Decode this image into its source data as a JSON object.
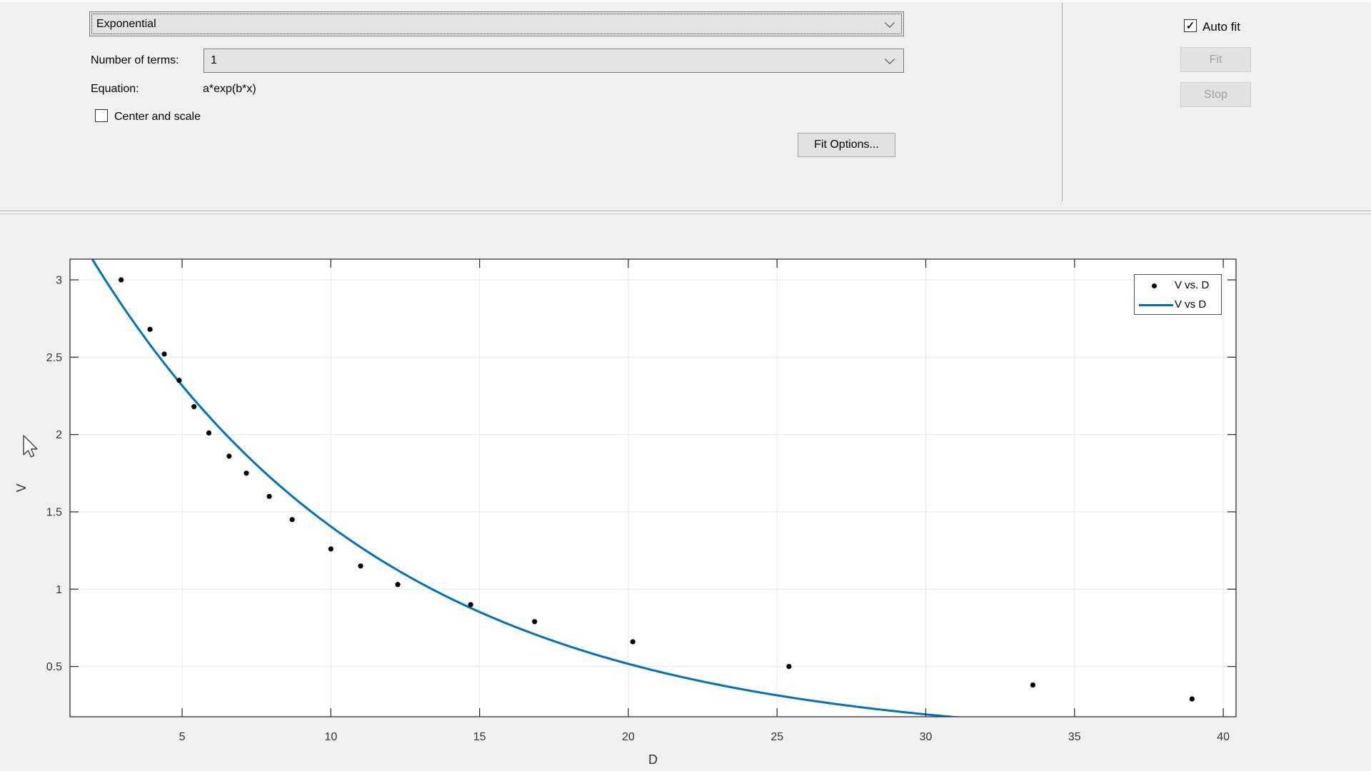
{
  "ui": {
    "fit_type": {
      "value": "Exponential"
    },
    "number_of_terms": {
      "label": "Number of terms:",
      "value": "1"
    },
    "equation": {
      "label": "Equation:",
      "value": "a*exp(b*x)"
    },
    "center_and_scale": {
      "label": "Center and scale",
      "checked": false
    },
    "fit_options_button": {
      "label": "Fit Options..."
    },
    "auto_fit": {
      "label": "Auto fit",
      "checked": true
    },
    "fit_button": {
      "label": "Fit",
      "enabled": false
    },
    "stop_button": {
      "label": "Stop",
      "enabled": false
    }
  },
  "chart_data": {
    "type": "scatter",
    "title": "",
    "xlabel": "D",
    "ylabel": "V",
    "xlim": [
      1.23,
      40.43
    ],
    "ylim": [
      0.175,
      3.134
    ],
    "xticks": [
      5,
      10,
      15,
      20,
      25,
      30,
      35,
      40
    ],
    "yticks": [
      0.5,
      1,
      1.5,
      2,
      2.5,
      3
    ],
    "grid": true,
    "legend_position": "northeast",
    "series": [
      {
        "name": "V vs. D",
        "type": "scatter",
        "marker": "point",
        "color": "#000000",
        "points": [
          [
            2.95,
            3.0
          ],
          [
            3.92,
            2.68
          ],
          [
            4.4,
            2.52
          ],
          [
            4.9,
            2.35
          ],
          [
            5.4,
            2.18
          ],
          [
            5.9,
            2.01
          ],
          [
            6.58,
            1.86
          ],
          [
            7.16,
            1.75
          ],
          [
            7.93,
            1.6
          ],
          [
            8.7,
            1.45
          ],
          [
            10.0,
            1.26
          ],
          [
            11.0,
            1.15
          ],
          [
            12.25,
            1.03
          ],
          [
            14.7,
            0.9
          ],
          [
            16.85,
            0.79
          ],
          [
            20.15,
            0.66
          ],
          [
            25.4,
            0.5
          ],
          [
            33.6,
            0.38
          ],
          [
            38.95,
            0.29
          ]
        ]
      },
      {
        "name": "V vs D",
        "type": "line",
        "color": "#0072BD",
        "model": "a*exp(b*x)",
        "a": 3.82,
        "b": -0.1,
        "x_range": [
          1.23,
          31.2
        ]
      }
    ]
  }
}
